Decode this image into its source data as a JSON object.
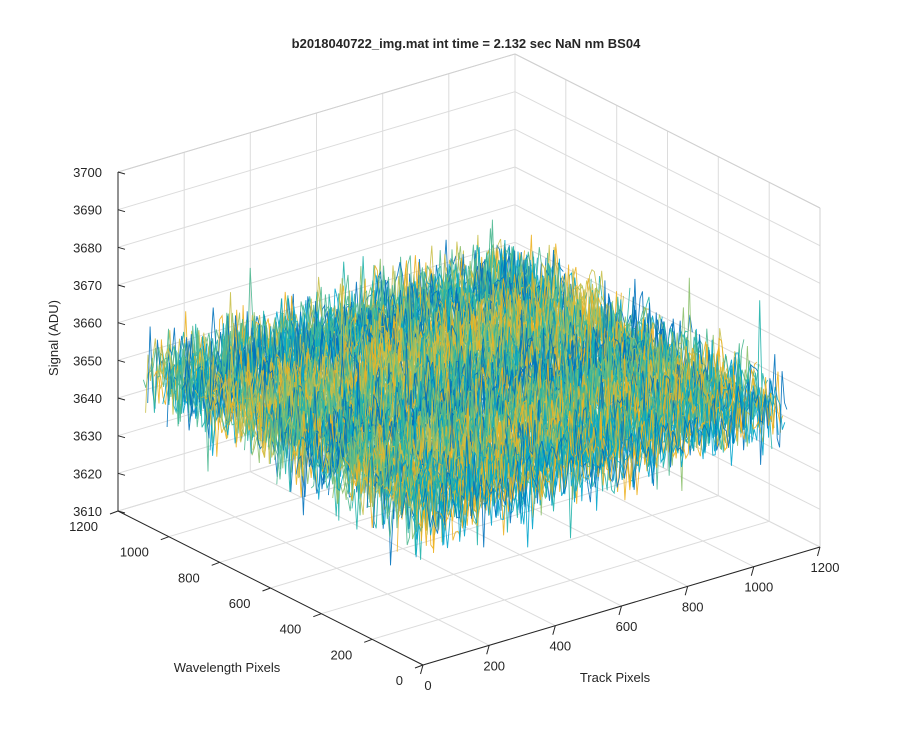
{
  "chart_data": {
    "type": "surface",
    "title": "b2018040722_img.mat int time = 2.132 sec  NaN nm BS04",
    "xlabel": "Track Pixels",
    "ylabel": "Wavelength Pixels",
    "zlabel": "Signal (ADU)",
    "xlim": [
      0,
      1200
    ],
    "ylim": [
      0,
      1200
    ],
    "zlim": [
      3610,
      3700
    ],
    "xticks": [
      "0",
      "200",
      "400",
      "600",
      "800",
      "1000",
      "1200"
    ],
    "yticks": [
      "0",
      "200",
      "400",
      "600",
      "800",
      "1000",
      "1200"
    ],
    "zticks": [
      "3610",
      "3620",
      "3630",
      "3640",
      "3650",
      "3660",
      "3670",
      "3680",
      "3690",
      "3700"
    ],
    "x_extent": [
      0,
      1100
    ],
    "y_extent": [
      0,
      1100
    ],
    "z_mean": 3650,
    "z_range": [
      3620,
      3690
    ],
    "grid": true,
    "colormap": [
      "#0072bd",
      "#00a4cc",
      "#20b2aa",
      "#4cb890",
      "#8cc06c",
      "#c9c04a",
      "#edb120"
    ]
  }
}
